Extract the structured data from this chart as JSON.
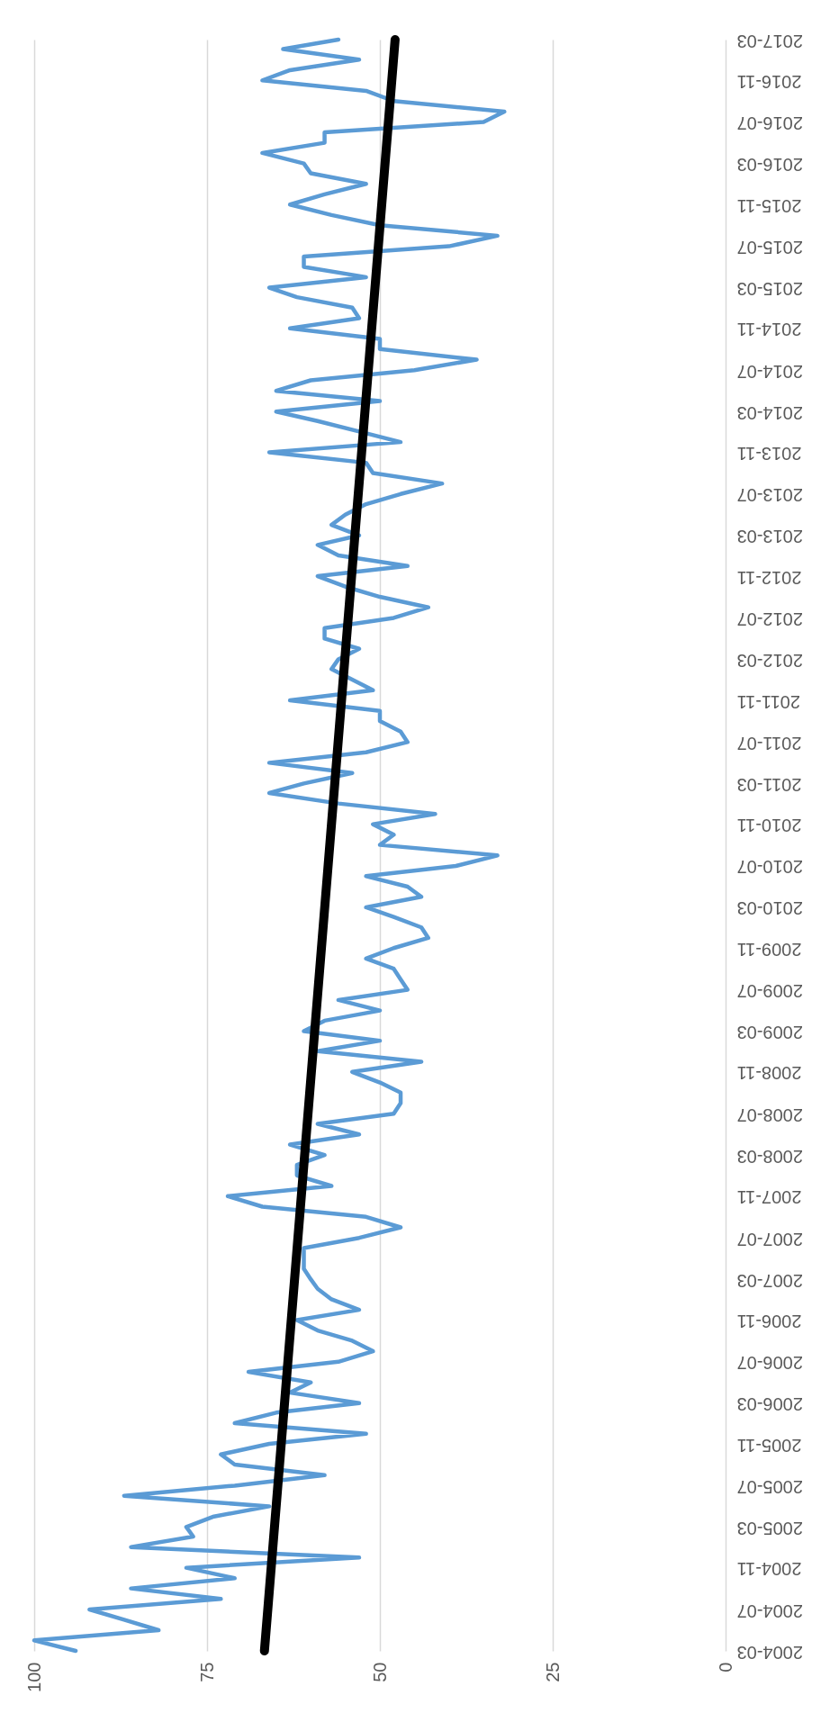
{
  "chart_data": {
    "type": "line",
    "orientation": "horizontal",
    "x": [
      "2004-03",
      "2004-04",
      "2004-05",
      "2004-06",
      "2004-07",
      "2004-08",
      "2004-09",
      "2004-10",
      "2004-11",
      "2004-12",
      "2005-01",
      "2005-02",
      "2005-03",
      "2005-04",
      "2005-05",
      "2005-06",
      "2005-07",
      "2005-08",
      "2005-09",
      "2005-10",
      "2005-11",
      "2005-12",
      "2006-01",
      "2006-02",
      "2006-03",
      "2006-04",
      "2006-05",
      "2006-06",
      "2006-07",
      "2006-08",
      "2006-09",
      "2006-10",
      "2006-11",
      "2006-12",
      "2007-01",
      "2007-02",
      "2007-03",
      "2007-04",
      "2007-05",
      "2007-06",
      "2007-07",
      "2007-08",
      "2007-09",
      "2007-10",
      "2007-11",
      "2007-12",
      "2008-01",
      "2008-02",
      "2008-03",
      "2008-04",
      "2008-05",
      "2008-06",
      "2008-07",
      "2008-08",
      "2008-09",
      "2008-10",
      "2008-11",
      "2008-12",
      "2009-01",
      "2009-02",
      "2009-03",
      "2009-04",
      "2009-05",
      "2009-06",
      "2009-07",
      "2009-08",
      "2009-09",
      "2009-10",
      "2009-11",
      "2009-12",
      "2010-01",
      "2010-02",
      "2010-03",
      "2010-04",
      "2010-05",
      "2010-06",
      "2010-07",
      "2010-08",
      "2010-09",
      "2010-10",
      "2010-11",
      "2010-12",
      "2011-01",
      "2011-02",
      "2011-03",
      "2011-04",
      "2011-05",
      "2011-06",
      "2011-07",
      "2011-08",
      "2011-09",
      "2011-10",
      "2011-11",
      "2011-12",
      "2012-01",
      "2012-02",
      "2012-03",
      "2012-04",
      "2012-05",
      "2012-06",
      "2012-07",
      "2012-08",
      "2012-09",
      "2012-10",
      "2012-11",
      "2012-12",
      "2013-01",
      "2013-02",
      "2013-03",
      "2013-04",
      "2013-05",
      "2013-06",
      "2013-07",
      "2013-08",
      "2013-09",
      "2013-10",
      "2013-11",
      "2013-12",
      "2014-01",
      "2014-02",
      "2014-03",
      "2014-04",
      "2014-05",
      "2014-06",
      "2014-07",
      "2014-08",
      "2014-09",
      "2014-10",
      "2014-11",
      "2014-12",
      "2015-01",
      "2015-02",
      "2015-03",
      "2015-04",
      "2015-05",
      "2015-06",
      "2015-07",
      "2015-08",
      "2015-09",
      "2015-10",
      "2015-11",
      "2015-12",
      "2016-01",
      "2016-02",
      "2016-03",
      "2016-04",
      "2016-05",
      "2016-06",
      "2016-07",
      "2016-08",
      "2016-09",
      "2016-10",
      "2016-11",
      "2016-12",
      "2017-01",
      "2017-02",
      "2017-03"
    ],
    "series": [
      {
        "color": "#5b9bd5",
        "values": [
          94,
          100,
          82,
          87,
          92,
          73,
          86,
          71,
          78,
          53,
          86,
          77,
          78,
          74,
          66,
          87,
          71,
          58,
          71,
          73,
          66,
          52,
          71,
          65,
          53,
          63,
          60,
          69,
          56,
          51,
          54,
          59,
          62,
          53,
          57,
          59,
          60,
          61,
          61,
          61,
          53,
          47,
          52,
          67,
          72,
          57,
          62,
          62,
          58,
          63,
          53,
          59,
          48,
          47,
          47,
          50,
          54,
          44,
          59,
          50,
          61,
          58,
          50,
          56,
          46,
          47,
          48,
          52,
          48,
          43,
          44,
          48,
          52,
          44,
          46,
          52,
          39,
          33,
          50,
          48,
          51,
          42,
          56,
          66,
          61,
          54,
          66,
          52,
          46,
          47,
          50,
          50,
          63,
          51,
          54,
          57,
          56,
          53,
          58,
          58,
          48,
          43,
          50,
          55,
          59,
          46,
          56,
          59,
          53,
          57,
          55,
          52,
          47,
          41,
          51,
          52,
          66,
          47,
          53,
          59,
          65,
          50,
          65,
          60,
          45,
          36,
          50,
          50,
          63,
          53,
          54,
          62,
          66,
          52,
          61,
          61,
          40,
          33,
          50,
          57,
          63,
          58,
          52,
          60,
          61,
          67,
          58,
          58,
          35,
          32,
          48,
          52,
          67,
          63,
          53,
          64,
          56
        ]
      },
      {
        "type": "line",
        "x": [
          "2004-03",
          "2017-03"
        ],
        "color": "#000000",
        "values": [
          66.7,
          47.8
        ]
      }
    ],
    "ylim": [
      "2004-03",
      "2017-03"
    ],
    "yticks": [
      "2004-03",
      "2004-07",
      "2004-11",
      "2005-03",
      "2005-07",
      "2005-11",
      "2006-03",
      "2006-07",
      "2006-11",
      "2007-03",
      "2007-07",
      "2007-11",
      "2008-03",
      "2008-07",
      "2008-11",
      "2009-03",
      "2009-07",
      "2009-11",
      "2010-03",
      "2010-07",
      "2010-11",
      "2011-03",
      "2011-07",
      "2011-11",
      "2012-03",
      "2012-07",
      "2012-11",
      "2013-03",
      "2013-07",
      "2013-11",
      "2014-03",
      "2014-07",
      "2014-11",
      "2015-03",
      "2015-07",
      "2015-11",
      "2016-03",
      "2016-07",
      "2016-11",
      "2017-03"
    ],
    "xlim": [
      100,
      0
    ],
    "xticks": [
      100,
      75,
      50,
      25,
      0
    ],
    "grid": "x"
  }
}
